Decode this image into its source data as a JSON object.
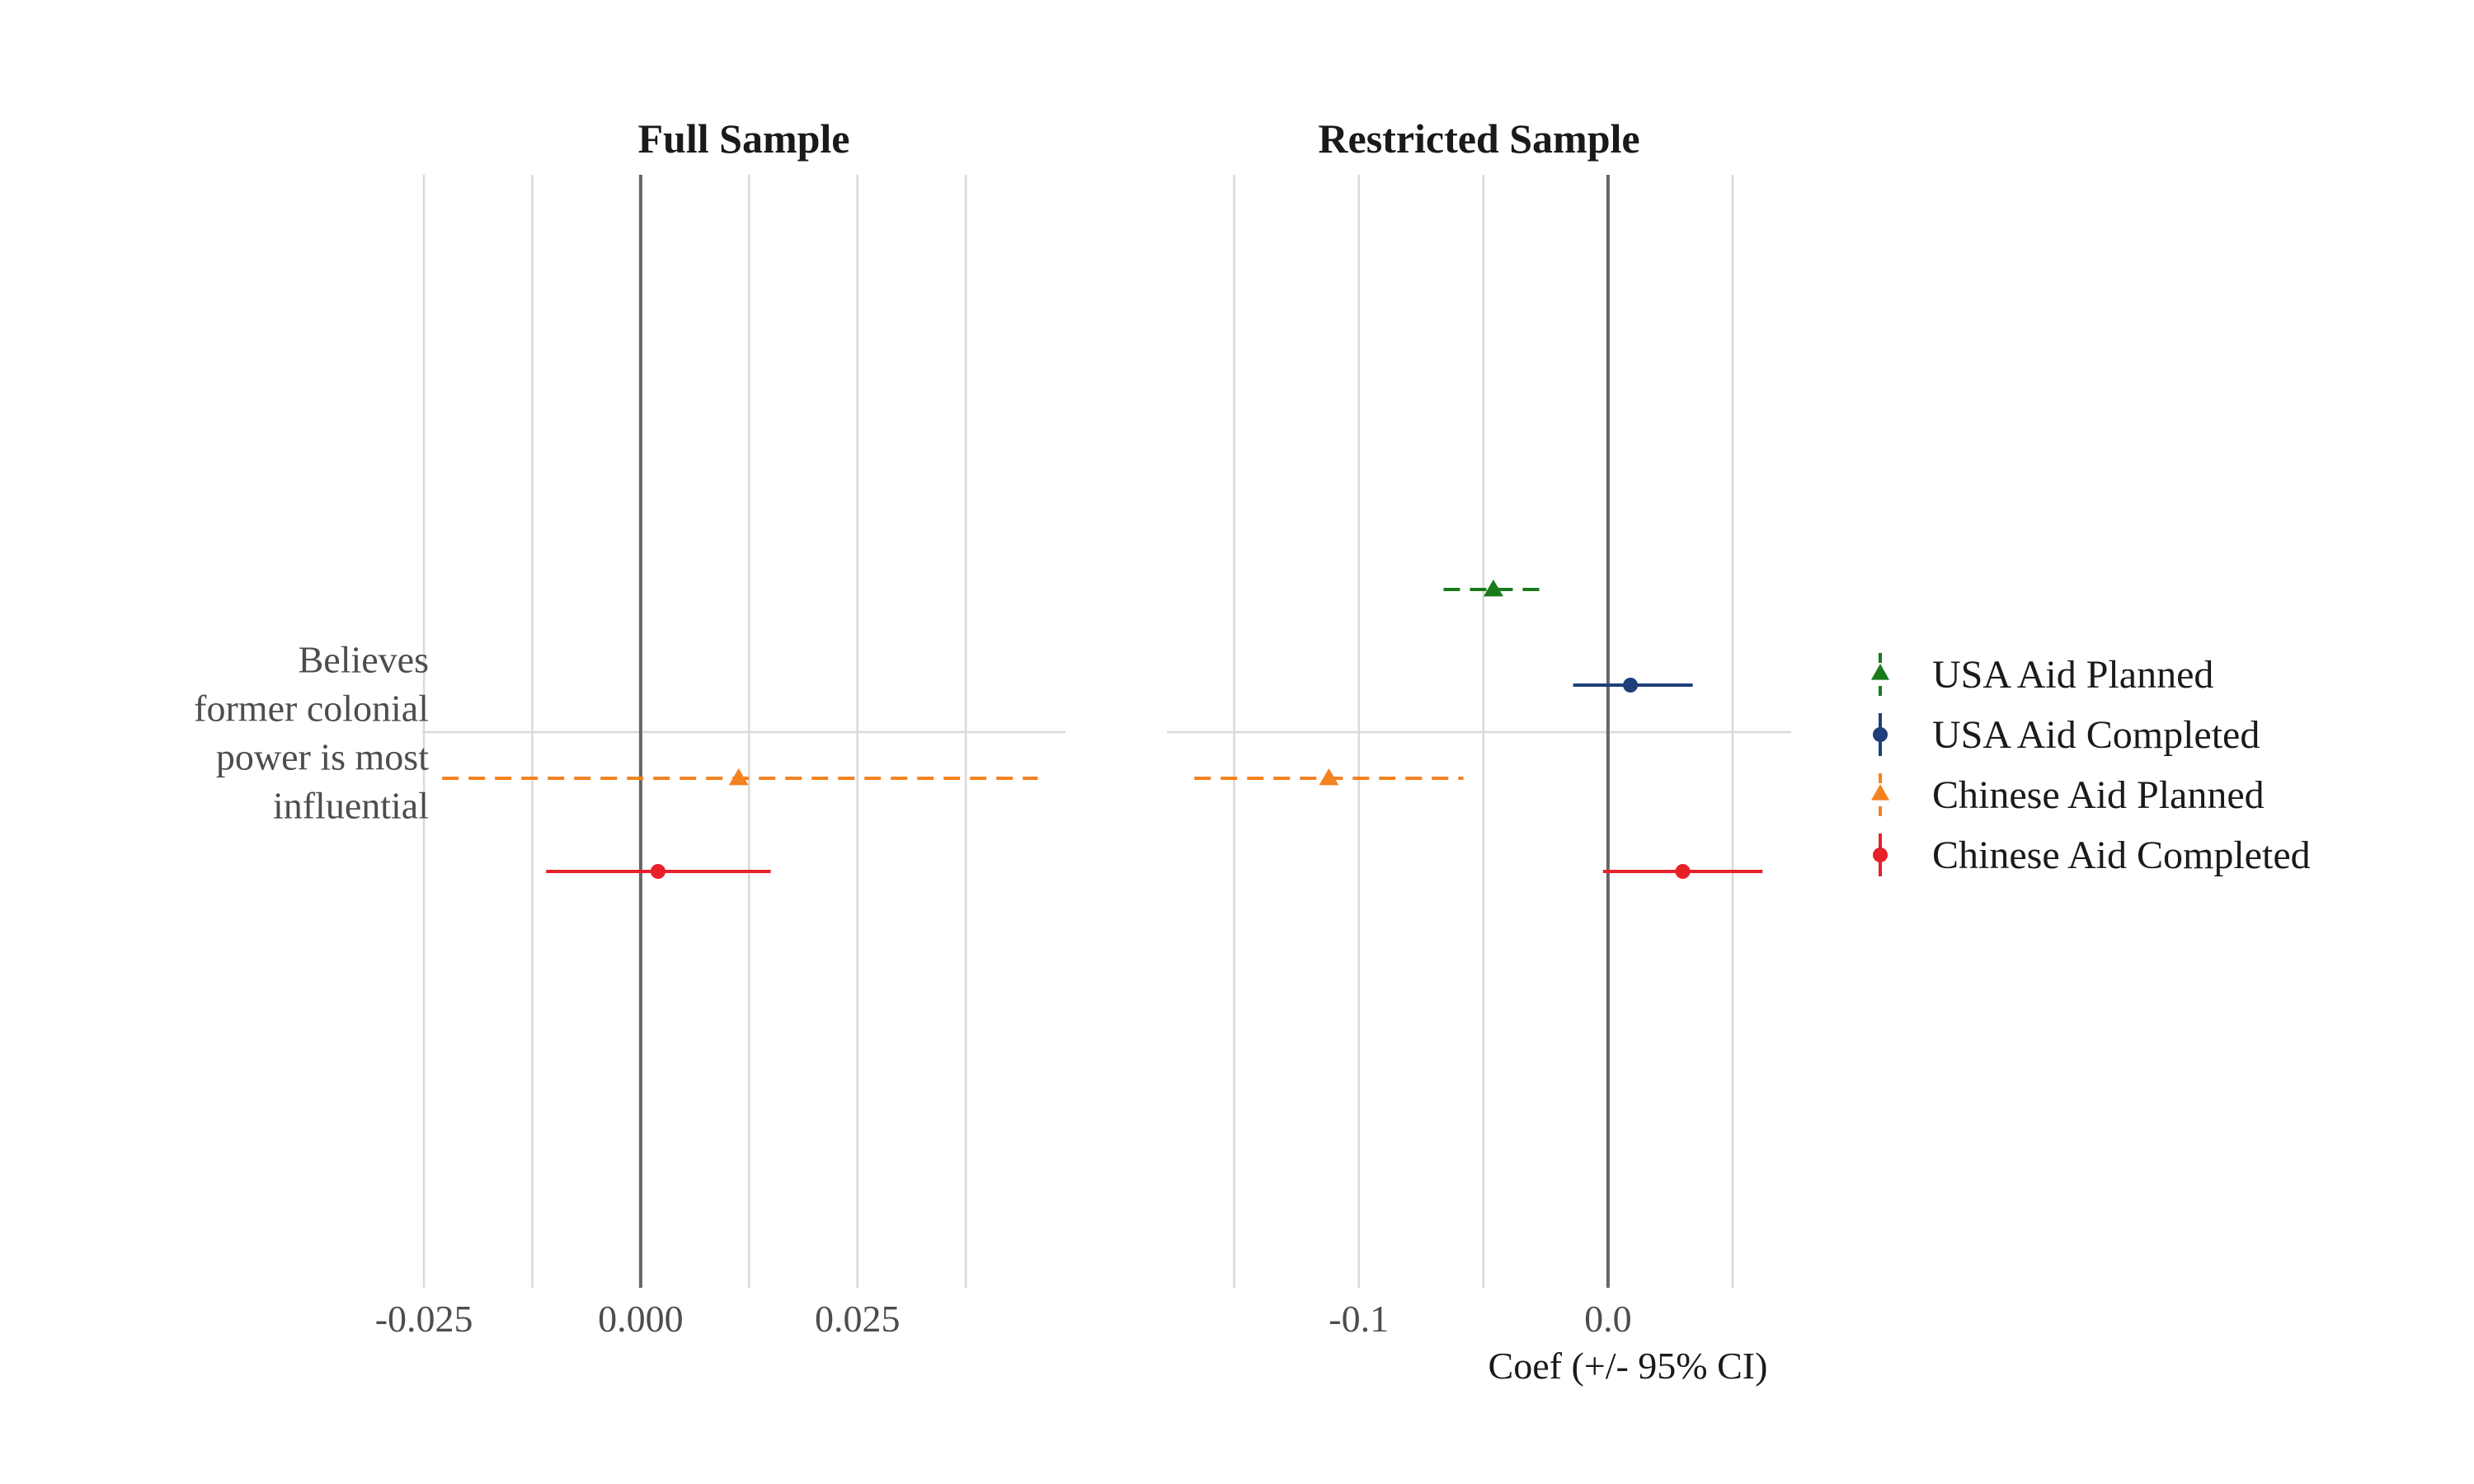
{
  "chart_data": {
    "type": "coefficient_plot",
    "x_axis_title": "Coef (+/- 95% CI)",
    "y_categories": [
      "Believes former colonial power is most influential"
    ],
    "y_label_lines": [
      "Believes",
      "former colonial",
      "power is most",
      "influential"
    ],
    "reference_line": 0,
    "grid": true,
    "legend_position": "right",
    "legend": [
      {
        "name": "USA Aid Planned",
        "color": "#1a7a1a",
        "marker": "triangle",
        "linestyle": "dashed"
      },
      {
        "name": "USA Aid Completed",
        "color": "#1f3f7a",
        "marker": "circle",
        "linestyle": "solid"
      },
      {
        "name": "Chinese Aid Planned",
        "color": "#f58220",
        "marker": "triangle",
        "linestyle": "dashed"
      },
      {
        "name": "Chinese Aid Completed",
        "color": "#e8202a",
        "marker": "circle",
        "linestyle": "solid"
      }
    ],
    "panels": [
      {
        "title": "Full Sample",
        "xlim": [
          -0.0252,
          0.049
        ],
        "ticks": [
          {
            "value": -0.025,
            "label": "-0.025"
          },
          {
            "value": 0.0,
            "label": "0.000"
          },
          {
            "value": 0.025,
            "label": "0.025"
          }
        ],
        "minor_grid": [
          -0.0125,
          0.0125,
          0.0375
        ],
        "series": [
          {
            "name": "Chinese Aid Planned",
            "estimate": 0.0113,
            "ci": [
              -0.0229,
              0.0458
            ]
          },
          {
            "name": "Chinese Aid Completed",
            "estimate": 0.002,
            "ci": [
              -0.0109,
              0.015
            ]
          }
        ]
      },
      {
        "title": "Restricted Sample",
        "xlim": [
          -0.177,
          0.0735
        ],
        "ticks": [
          {
            "value": -0.1,
            "label": "-0.1"
          },
          {
            "value": 0.0,
            "label": "0.0"
          }
        ],
        "minor_grid": [
          -0.15,
          -0.05,
          0.05
        ],
        "series": [
          {
            "name": "USA Aid Planned",
            "estimate": -0.046,
            "ci": [
              -0.066,
              -0.026
            ]
          },
          {
            "name": "USA Aid Completed",
            "estimate": 0.009,
            "ci": [
              -0.014,
              0.034
            ]
          },
          {
            "name": "Chinese Aid Planned",
            "estimate": -0.112,
            "ci": [
              -0.166,
              -0.058
            ]
          },
          {
            "name": "Chinese Aid Completed",
            "estimate": 0.03,
            "ci": [
              -0.002,
              0.062
            ]
          }
        ]
      }
    ]
  }
}
